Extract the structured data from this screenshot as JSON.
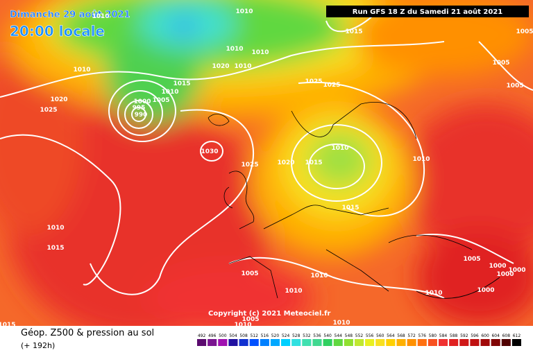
{
  "header": {
    "date": "Dimanche 29 août 2021",
    "time": "20:00 locale",
    "run": "Run GFS 18 Z du Samedi 21 août 2021"
  },
  "map": {
    "copyright": "Copyright (c) 2021 Meteociel.fr",
    "isobar_labels": [
      1010,
      1010,
      1015,
      1005,
      1010,
      1010,
      1020,
      1010,
      1010,
      1005,
      1015,
      1025,
      1025,
      1005,
      1010,
      1005,
      1020,
      1000,
      1025,
      995,
      990,
      1030,
      1010,
      1025,
      1020,
      1015,
      1010,
      1015,
      1010,
      1015,
      1005,
      1000,
      1000,
      1000,
      1005,
      1010,
      1010,
      1000,
      1010,
      1015,
      1005,
      1010,
      1010
    ]
  },
  "footer": {
    "title": "Géop. Z500 & pression au sol",
    "lead": "(+ 192h)"
  },
  "legend": {
    "values": [
      492,
      496,
      500,
      504,
      508,
      512,
      516,
      520,
      524,
      528,
      532,
      536,
      540,
      544,
      548,
      552,
      556,
      560,
      564,
      568,
      572,
      576,
      580,
      584,
      588,
      592,
      596,
      600,
      604,
      608,
      612
    ],
    "colors": [
      "#5a0a6e",
      "#7a1490",
      "#a010b0",
      "#2010a0",
      "#1030d0",
      "#0050ff",
      "#0080ff",
      "#00a8ff",
      "#00d0ff",
      "#30e0e0",
      "#40e0b0",
      "#40d890",
      "#30d060",
      "#60d840",
      "#90e030",
      "#c0e830",
      "#e8f020",
      "#f8e020",
      "#ffd000",
      "#ffb000",
      "#ff9000",
      "#ff7010",
      "#f85020",
      "#f03030",
      "#e02020",
      "#d01818",
      "#c01010",
      "#a00808",
      "#800404",
      "#500000",
      "#000000"
    ]
  }
}
